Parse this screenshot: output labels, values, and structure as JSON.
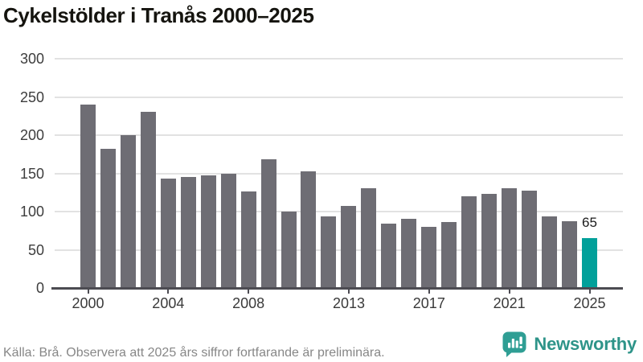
{
  "header": {
    "title": "Cykelstölder i Tranås 2000–2025"
  },
  "chart_data": {
    "type": "bar",
    "title": "Cykelstölder i Tranås 2000–2025",
    "categories": [
      2000,
      2001,
      2002,
      2003,
      2004,
      2005,
      2006,
      2007,
      2008,
      2009,
      2010,
      2011,
      2012,
      2013,
      2014,
      2015,
      2016,
      2017,
      2018,
      2019,
      2020,
      2021,
      2022,
      2023,
      2024,
      2025
    ],
    "values": [
      240,
      182,
      200,
      231,
      143,
      145,
      147,
      149,
      126,
      168,
      100,
      153,
      94,
      107,
      131,
      84,
      90,
      80,
      86,
      120,
      123,
      131,
      127,
      94,
      87,
      65
    ],
    "xlabel": "",
    "ylabel": "",
    "ylim": [
      0,
      300
    ],
    "yticks": [
      0,
      50,
      100,
      150,
      200,
      250,
      300
    ],
    "xticks": [
      2000,
      2004,
      2008,
      2013,
      2017,
      2021,
      2025
    ],
    "grid": true,
    "legend": "none",
    "bar_color": "#6e6d74",
    "highlight_color": "#01a09a",
    "highlight_index": 25,
    "data_label": {
      "index": 25,
      "text": "65"
    }
  },
  "footer": {
    "source": "Källa: Brå. Observera att 2025 års siffror fortfarande är preliminära.",
    "brand": {
      "name": "Newsworthy",
      "icon": "newsworthy-speech-bubble-chart-icon",
      "text_color": "#2e9489",
      "icon_color": "#2f9e94"
    }
  }
}
